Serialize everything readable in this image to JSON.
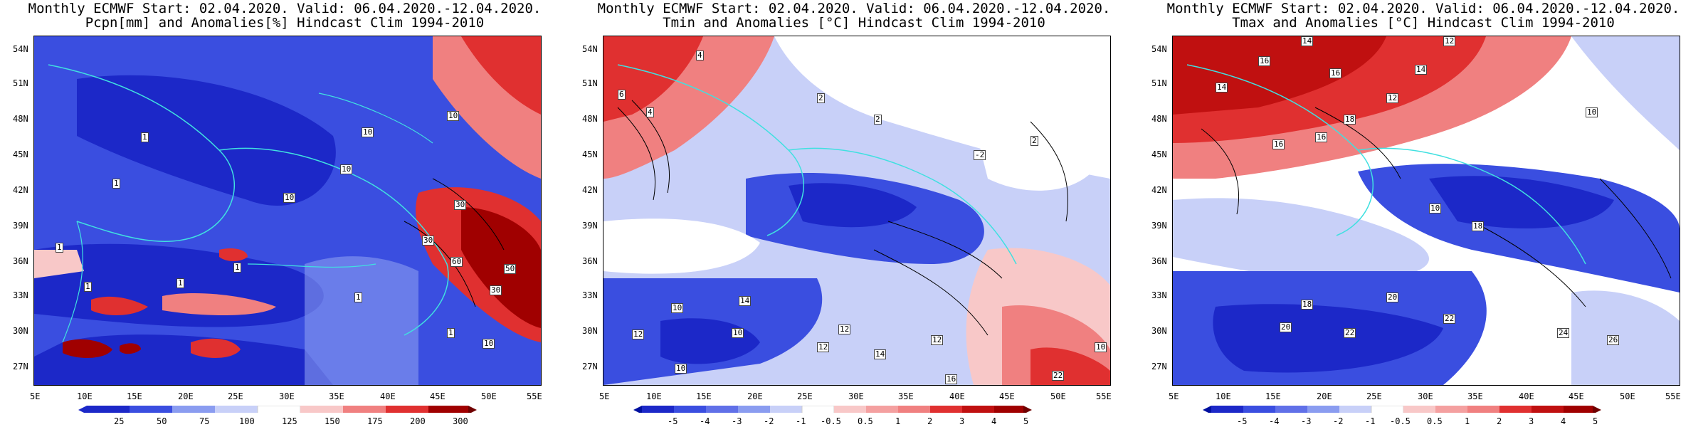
{
  "colors": {
    "deep_blue": "#1c28c8",
    "mid_blue": "#3a4ee0",
    "light_blue": "#8a9cf0",
    "pale_blue": "#c8d0f8",
    "white": "#ffffff",
    "pale_red": "#f8c8c8",
    "light_red": "#f08080",
    "mid_red": "#e03030",
    "deep_red": "#a00000",
    "coast": "#40e0e0",
    "contour": "#000000"
  },
  "lat_labels": [
    "54N",
    "51N",
    "48N",
    "45N",
    "42N",
    "39N",
    "36N",
    "33N",
    "30N",
    "27N"
  ],
  "lon_labels": [
    "5E",
    "10E",
    "15E",
    "20E",
    "25E",
    "30E",
    "35E",
    "40E",
    "45E",
    "50E",
    "55E"
  ],
  "panels": [
    {
      "id": "pcpn",
      "title_line1": "Monthly ECMWF Start: 02.04.2020. Valid: 06.04.2020.-12.04.2020.",
      "title_line2": "Pcpn[mm] and Anomalies[%] Hindcast Clim 1994-2010",
      "colorbar_labels": [
        "25",
        "50",
        "75",
        "100",
        "125",
        "150",
        "175",
        "200",
        "300"
      ],
      "annotations": [
        "1",
        "1",
        "1",
        "1",
        "1",
        "1",
        "10",
        "10",
        "10",
        "10",
        "10",
        "30",
        "30",
        "30",
        "50",
        "60",
        "1",
        "1"
      ]
    },
    {
      "id": "tmin",
      "title_line1": "Monthly ECMWF Start: 02.04.2020. Valid: 06.04.2020.-12.04.2020.",
      "title_line2": "Tmin and Anomalies [°C] Hindcast Clim 1994-2010",
      "colorbar_labels": [
        "-5",
        "-4",
        "-3",
        "-2",
        "-1",
        "-0.5",
        "0.5",
        "1",
        "2",
        "3",
        "4",
        "5"
      ],
      "annotations": [
        "4",
        "4",
        "6",
        "2",
        "2",
        "10",
        "12",
        "10",
        "14",
        "12",
        "10",
        "12",
        "14",
        "12",
        "16",
        "10",
        "22",
        "-2",
        "2"
      ]
    },
    {
      "id": "tmax",
      "title_line1": "Monthly ECMWF Start: 02.04.2020. Valid: 06.04.2020.-12.04.2020.",
      "title_line2": "Tmax and Anomalies [°C] Hindcast Clim 1994-2010",
      "colorbar_labels": [
        "-5",
        "-4",
        "-3",
        "-2",
        "-1",
        "-0.5",
        "0.5",
        "1",
        "2",
        "3",
        "4",
        "5"
      ],
      "annotations": [
        "14",
        "12",
        "16",
        "16",
        "14",
        "14",
        "12",
        "18",
        "16",
        "10",
        "18",
        "16",
        "10",
        "20",
        "22",
        "24",
        "22",
        "20",
        "18",
        "26"
      ]
    }
  ]
}
